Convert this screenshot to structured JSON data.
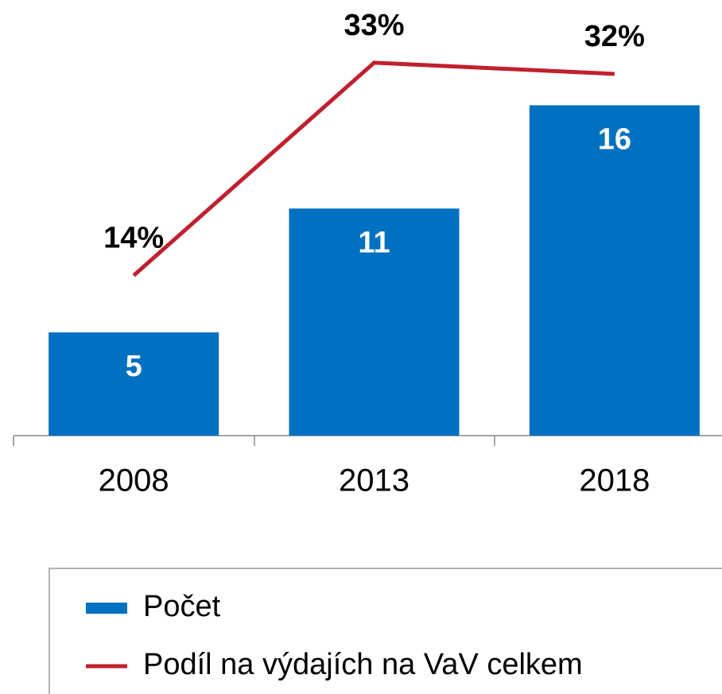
{
  "chart_data": {
    "type": "bar",
    "categories": [
      "2008",
      "2013",
      "2018"
    ],
    "series": [
      {
        "name": "Počet",
        "type": "bar",
        "color": "#0070c0",
        "values": [
          5,
          11,
          16
        ]
      },
      {
        "name": "Podíl na výdajích na VaV celkem",
        "type": "line",
        "axis": "y2",
        "color": "#c0202e",
        "values": [
          14,
          33,
          32
        ],
        "value_labels": [
          "14%",
          "33%",
          "32%"
        ]
      }
    ],
    "ylim": [
      0,
      21.1
    ],
    "y2lim": [
      -0.3,
      38.6
    ],
    "legend": "bottom"
  }
}
